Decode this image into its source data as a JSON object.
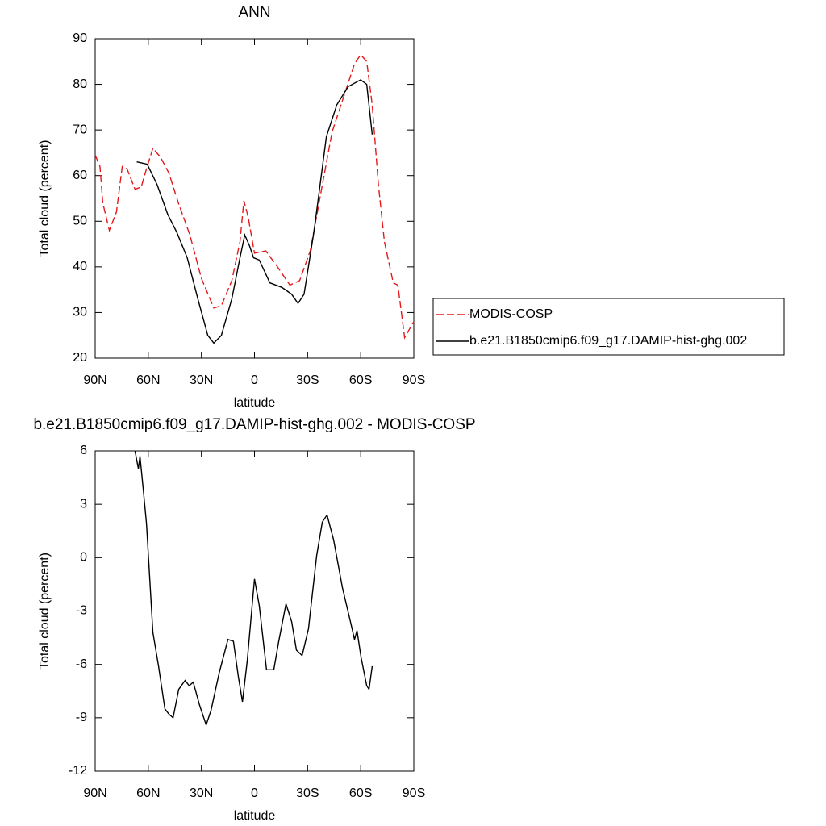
{
  "chart_data": [
    {
      "type": "line",
      "title": "ANN",
      "xlabel": "latitude",
      "ylabel": "Total cloud (percent)",
      "xlim": [
        90,
        -90
      ],
      "ylim": [
        20,
        90
      ],
      "xticks": [
        {
          "value": 90,
          "label": "90N"
        },
        {
          "value": 60,
          "label": "60N"
        },
        {
          "value": 30,
          "label": "30N"
        },
        0,
        {
          "value": -30,
          "label": "30S"
        },
        {
          "value": -60,
          "label": "60S"
        },
        {
          "value": -90,
          "label": "90S"
        }
      ],
      "yticks": [
        20,
        30,
        40,
        50,
        60,
        70,
        80,
        90
      ],
      "legend": "right",
      "series": [
        {
          "name": "MODIS-COSP",
          "color": "#e41a1c",
          "style": "dashed",
          "x": [
            90,
            87.3,
            85.7,
            82,
            78,
            74.7,
            72,
            67.5,
            64,
            61,
            57.4,
            53,
            48.3,
            43,
            36.5,
            30,
            23,
            18.7,
            12.8,
            8.2,
            6,
            3.6,
            0,
            -6.4,
            -13,
            -20,
            -25.5,
            -31.5,
            -37.4,
            -43.8,
            -51,
            -56.5,
            -60,
            -63.4,
            -66.5,
            -70,
            -73.4,
            -78.4,
            -81,
            -84.8,
            -87,
            -90
          ],
          "values": [
            64.5,
            62,
            54,
            48,
            52,
            62,
            61.5,
            57,
            57.5,
            61.5,
            66,
            64,
            60.5,
            54,
            47,
            37.5,
            31,
            31.5,
            37,
            45.5,
            54.5,
            51,
            43,
            43.5,
            40,
            36,
            37,
            43.5,
            56,
            69.5,
            78,
            84.5,
            86.5,
            85,
            75.5,
            58,
            45.5,
            36.5,
            36,
            24.5,
            26,
            28
          ]
        },
        {
          "name": "b.e21.B1850cmip6.f09_g17.DAMIP-hist-ghg.002",
          "color": "#000000",
          "style": "solid",
          "x": [
            66.5,
            60.6,
            55,
            49,
            43.8,
            38,
            32,
            26.4,
            23,
            18.7,
            12.8,
            8.2,
            5.5,
            2.7,
            0.5,
            -2.7,
            -8.7,
            -15.5,
            -21,
            -24.6,
            -28,
            -33.7,
            -40.6,
            -46.5,
            -52.9,
            -60,
            -63.4,
            -66.5
          ],
          "values": [
            63,
            62.5,
            58,
            51.5,
            47.5,
            42,
            33,
            25,
            23.3,
            25,
            33,
            42,
            47,
            44.5,
            42,
            41.5,
            36.5,
            35.5,
            34,
            32,
            34,
            48,
            68.5,
            75.5,
            79.5,
            81,
            80,
            69
          ]
        }
      ]
    },
    {
      "type": "line",
      "title": "b.e21.B1850cmip6.f09_g17.DAMIP-hist-ghg.002 - MODIS-COSP",
      "xlabel": "latitude",
      "ylabel": "Total cloud (percent)",
      "xlim": [
        90,
        -90
      ],
      "ylim": [
        -12,
        6
      ],
      "xticks": [
        {
          "value": 90,
          "label": "90N"
        },
        {
          "value": 60,
          "label": "60N"
        },
        {
          "value": 30,
          "label": "30N"
        },
        0,
        {
          "value": -30,
          "label": "30S"
        },
        {
          "value": -60,
          "label": "60S"
        },
        {
          "value": -90,
          "label": "90S"
        }
      ],
      "yticks": [
        -12,
        -9,
        -6,
        -3,
        0,
        3,
        6
      ],
      "series": [
        {
          "color": "#000000",
          "style": "solid",
          "x": [
            67.5,
            65.6,
            64.7,
            62.9,
            61,
            57.4,
            54.2,
            50.6,
            48.3,
            46,
            42.8,
            39.2,
            36.9,
            34.6,
            31,
            27.3,
            24.6,
            20,
            15,
            11.9,
            9.1,
            6.8,
            4.1,
            0,
            -2.7,
            -6.8,
            -10.9,
            -13.7,
            -17.8,
            -21,
            -23.7,
            -26.9,
            -30.5,
            -35.1,
            -38.3,
            -41,
            -44.7,
            -49.7,
            -54.2,
            -56.5,
            -57.9,
            -60.2,
            -63.4,
            -64.7,
            -66.5
          ],
          "values": [
            6,
            5,
            5.7,
            3.9,
            1.9,
            -4.2,
            -6.1,
            -8.5,
            -8.8,
            -9,
            -7.4,
            -6.9,
            -7.2,
            -7,
            -8.3,
            -9.4,
            -8.6,
            -6.5,
            -4.6,
            -4.7,
            -6.7,
            -8.1,
            -5.8,
            -1.2,
            -2.7,
            -6.3,
            -6.3,
            -4.7,
            -2.6,
            -3.6,
            -5.2,
            -5.5,
            -4,
            0.1,
            2,
            2.4,
            1,
            -1.7,
            -3.6,
            -4.6,
            -4.1,
            -5.6,
            -7.2,
            -7.4,
            -6.1
          ]
        }
      ]
    }
  ]
}
